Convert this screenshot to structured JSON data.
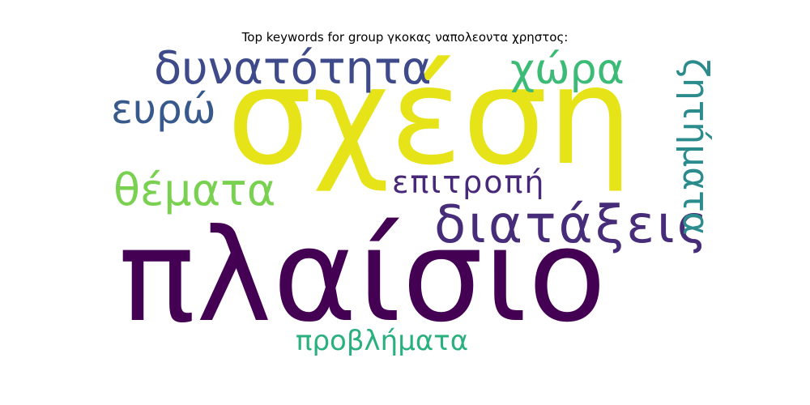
{
  "title": "Top keywords for group γκοκας ναπολεοντα χρηστος:",
  "words": {
    "plaisio": {
      "text": "πλαίσιο",
      "color": "#440154"
    },
    "sxesi": {
      "text": "σχέση",
      "color": "#e6e419"
    },
    "dynatotita": {
      "text": "δυνατότητα",
      "color": "#3e4a89"
    },
    "diatakseis": {
      "text": "διατάξεις",
      "color": "#472c7a"
    },
    "xora": {
      "text": "χώρα",
      "color": "#3bbb75"
    },
    "themata": {
      "text": "θέματα",
      "color": "#7ad151"
    },
    "evro": {
      "text": "ευρώ",
      "color": "#38598c"
    },
    "epitropi": {
      "text": "επιτροπή",
      "color": "#482878"
    },
    "provlimata": {
      "text": "προβλήματα",
      "color": "#2ab07f"
    },
    "zitimata": {
      "text": "ζητήματα",
      "color": "#2c8c8d"
    }
  }
}
